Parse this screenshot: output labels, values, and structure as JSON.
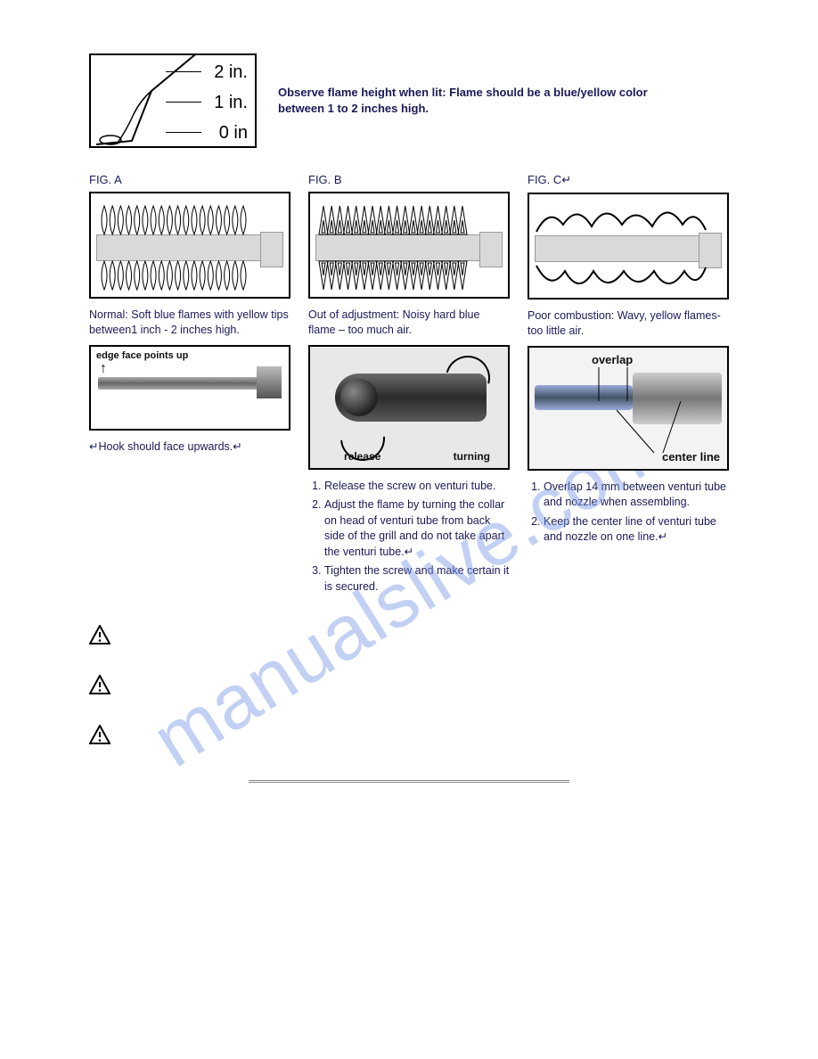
{
  "top": {
    "tick2": "2 in.",
    "tick1": "1 in.",
    "tick0": "0 in",
    "observe": "Observe flame height when lit: Flame should be a blue/yellow color between 1 to 2 inches high."
  },
  "figA": {
    "title": "FIG. A",
    "caption": "Normal: Soft blue flames with yellow tips between1 inch - 2 inches high.",
    "edge_label": "edge face points up",
    "hook": "↵Hook should face upwards.↵"
  },
  "figB": {
    "title": "FIG. B",
    "caption": "Out of adjustment: Noisy hard blue flame – too much air.",
    "release": "release",
    "turning": "turning",
    "steps": [
      "Release the screw on venturi tube.",
      "Adjust the flame by turning the collar on head of venturi tube from back side of the grill and do not take apart the venturi tube.↵",
      "Tighten the screw and make certain it is secured."
    ]
  },
  "figC": {
    "title": "FIG. C↵",
    "caption": "Poor combustion: Wavy, yellow flames- too little air.",
    "overlap": "overlap",
    "centerline": "center line",
    "steps": [
      "Overlap 14 mm between venturi tube and nozzle when assembling.",
      "Keep the center line of venturi tube and nozzle on one line.↵"
    ]
  },
  "flame_shape": {
    "count_A": 18,
    "count_B": 18
  },
  "colors": {
    "text": "#1a1a5a",
    "watermark": "rgba(120,150,230,0.45)",
    "border": "#000000",
    "tube_fill": "#d9d9d9"
  },
  "watermark": "manualslive.com"
}
